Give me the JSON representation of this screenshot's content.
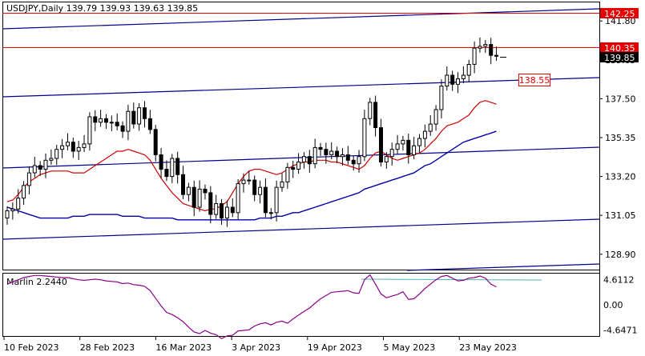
{
  "header": {
    "symbol_info": "USDJPY,Daily  139.79 139.93 139.63 139.85"
  },
  "indicator": {
    "label": "Marlin 2.2440"
  },
  "price_axis": {
    "ticks": [
      "141.80",
      "139.65",
      "137.50",
      "135.35",
      "133.20",
      "131.05",
      "128.90"
    ],
    "badges": [
      {
        "text": "142.25",
        "color": "#e60000"
      },
      {
        "text": "140.35",
        "color": "#e60000"
      },
      {
        "text": "139.85",
        "color": "#000000"
      }
    ]
  },
  "indicator_axis": {
    "ticks": [
      "4.6112",
      "0.00",
      "-4.6471"
    ]
  },
  "time_axis": {
    "ticks": [
      "10 Feb 2023",
      "28 Feb 2023",
      "16 Mar 2023",
      "3 Apr 2023",
      "19 Apr 2023",
      "5 May 2023",
      "23 May 2023"
    ]
  },
  "annotation": {
    "level_label": "138.55",
    "color": "#e60000"
  },
  "colors": {
    "channel": "#00008b",
    "ma_fast": "#d00000",
    "ma_slow": "#0000aa",
    "oscillator": "#8b008b",
    "osc_signal": "#4fb6b6",
    "level_line": "#e60000"
  },
  "chart_data": {
    "type": "candlestick",
    "symbol": "USDJPY",
    "timeframe": "Daily",
    "ohlc_last": {
      "open": 139.79,
      "high": 139.93,
      "low": 139.63,
      "close": 139.85
    },
    "y_range": [
      128.0,
      142.6
    ],
    "horizontal_levels": [
      142.25,
      140.35
    ],
    "close_series": [
      131.3,
      131.4,
      132.0,
      132.7,
      133.4,
      133.8,
      133.6,
      134.1,
      134.2,
      134.7,
      134.9,
      135.1,
      134.6,
      134.8,
      135.0,
      136.5,
      136.2,
      136.4,
      136.2,
      136.2,
      136.0,
      135.7,
      136.8,
      136.1,
      137.0,
      136.4,
      135.8,
      134.4,
      133.6,
      133.2,
      134.2,
      133.3,
      132.2,
      132.6,
      131.5,
      132.5,
      132.3,
      131.1,
      131.7,
      130.9,
      131.5,
      131.2,
      132.8,
      133.0,
      133.0,
      132.2,
      132.6,
      131.2,
      131.2,
      132.6,
      132.9,
      133.7,
      133.6,
      134.0,
      134.3,
      133.9,
      134.8,
      134.7,
      134.4,
      134.6,
      134.3,
      134.4,
      134.1,
      133.9,
      134.3,
      136.4,
      137.3,
      135.9,
      134.0,
      134.3,
      134.7,
      135.0,
      135.2,
      134.4,
      134.9,
      135.3,
      135.7,
      136.1,
      136.9,
      138.2,
      138.8,
      138.3,
      138.6,
      138.8,
      139.4,
      140.3,
      140.4,
      140.5,
      139.9,
      139.85
    ],
    "ma_fast": [
      131.8,
      131.9,
      132.2,
      132.6,
      132.9,
      133.1,
      133.3,
      133.4,
      133.5,
      133.5,
      133.5,
      133.5,
      133.4,
      133.4,
      133.4,
      133.6,
      133.8,
      134.0,
      134.2,
      134.4,
      134.6,
      134.6,
      134.7,
      134.6,
      134.5,
      134.4,
      134.1,
      133.6,
      133.1,
      132.7,
      132.3,
      132.0,
      131.7,
      131.6,
      131.5,
      131.4,
      131.3,
      131.4,
      131.4,
      131.6,
      131.8,
      132.3,
      132.8,
      133.2,
      133.5,
      133.6,
      133.6,
      133.5,
      133.4,
      133.3,
      133.4,
      133.6,
      133.8,
      133.9,
      134.0,
      134.0,
      134.1,
      134.1,
      134.1,
      134.0,
      134.0,
      133.9,
      133.8,
      133.7,
      133.6,
      133.8,
      134.2,
      134.5,
      134.6,
      134.4,
      134.2,
      134.1,
      134.2,
      134.3,
      134.4,
      134.5,
      134.7,
      135.0,
      135.3,
      135.7,
      136.0,
      136.1,
      136.2,
      136.4,
      136.6,
      137.0,
      137.3,
      137.4,
      137.3,
      137.2
    ],
    "ma_slow": [
      131.5,
      131.4,
      131.3,
      131.2,
      131.1,
      131.0,
      130.9,
      130.9,
      130.9,
      130.9,
      130.9,
      130.9,
      131.0,
      131.0,
      131.0,
      131.1,
      131.1,
      131.1,
      131.1,
      131.1,
      131.1,
      131.0,
      131.0,
      131.0,
      131.0,
      130.9,
      130.9,
      130.9,
      130.9,
      130.9,
      130.9,
      130.8,
      130.8,
      130.8,
      130.8,
      130.8,
      130.8,
      130.8,
      130.8,
      130.8,
      130.8,
      130.8,
      130.8,
      130.8,
      130.8,
      130.8,
      130.9,
      130.9,
      130.9,
      131.0,
      131.0,
      131.1,
      131.2,
      131.2,
      131.3,
      131.4,
      131.5,
      131.6,
      131.7,
      131.8,
      131.9,
      132.0,
      132.1,
      132.2,
      132.3,
      132.5,
      132.6,
      132.7,
      132.8,
      132.9,
      133.0,
      133.1,
      133.2,
      133.3,
      133.4,
      133.6,
      133.8,
      133.9,
      134.1,
      134.3,
      134.5,
      134.7,
      134.9,
      135.1,
      135.2,
      135.3,
      135.4,
      135.5,
      135.6,
      135.7
    ],
    "oscillator": [
      3.8,
      4.2,
      4.6,
      5.0,
      5.2,
      5.4,
      5.4,
      5.3,
      5.2,
      5.1,
      5.0,
      5.0,
      4.8,
      4.6,
      4.5,
      4.6,
      4.7,
      4.6,
      4.4,
      4.3,
      4.2,
      3.9,
      4.0,
      3.7,
      3.6,
      3.4,
      2.6,
      1.2,
      -0.2,
      -1.4,
      -1.8,
      -2.4,
      -3.1,
      -4.1,
      -5.0,
      -5.3,
      -4.7,
      -5.2,
      -5.5,
      -6.2,
      -5.7,
      -5.6,
      -4.8,
      -4.7,
      -4.6,
      -3.9,
      -3.5,
      -3.3,
      -3.7,
      -3.2,
      -3.0,
      -3.4,
      -2.6,
      -1.9,
      -1.2,
      -0.6,
      0.3,
      1.1,
      1.7,
      2.3,
      2.4,
      2.5,
      2.6,
      2.2,
      2.1,
      4.6,
      5.5,
      3.8,
      2.0,
      1.3,
      1.6,
      1.9,
      2.4,
      1.0,
      1.1,
      2.0,
      3.0,
      3.8,
      4.6,
      5.2,
      5.4,
      4.9,
      4.4,
      4.5,
      4.9,
      5.0,
      5.3,
      4.9,
      3.8,
      3.3
    ],
    "indicator_range": [
      -4.6471,
      4.6112
    ]
  }
}
